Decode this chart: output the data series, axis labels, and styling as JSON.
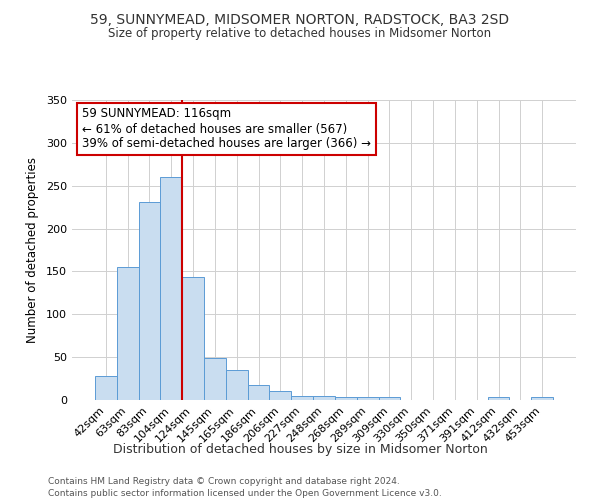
{
  "title": "59, SUNNYMEAD, MIDSOMER NORTON, RADSTOCK, BA3 2SD",
  "subtitle": "Size of property relative to detached houses in Midsomer Norton",
  "xlabel": "Distribution of detached houses by size in Midsomer Norton",
  "ylabel": "Number of detached properties",
  "bar_labels": [
    "42sqm",
    "63sqm",
    "83sqm",
    "104sqm",
    "124sqm",
    "145sqm",
    "165sqm",
    "186sqm",
    "206sqm",
    "227sqm",
    "248sqm",
    "268sqm",
    "289sqm",
    "309sqm",
    "330sqm",
    "350sqm",
    "371sqm",
    "391sqm",
    "412sqm",
    "432sqm",
    "453sqm"
  ],
  "bar_values": [
    28,
    155,
    231,
    260,
    143,
    49,
    35,
    18,
    11,
    5,
    5,
    4,
    3,
    3,
    0,
    0,
    0,
    0,
    4,
    0,
    4
  ],
  "bar_color": "#c9ddf0",
  "bar_edge_color": "#5b9bd5",
  "vline_color": "#cc0000",
  "vline_x_index": 4,
  "ylim": [
    0,
    350
  ],
  "yticks": [
    0,
    50,
    100,
    150,
    200,
    250,
    300,
    350
  ],
  "annotation_title": "59 SUNNYMEAD: 116sqm",
  "annotation_line1": "← 61% of detached houses are smaller (567)",
  "annotation_line2": "39% of semi-detached houses are larger (366) →",
  "annotation_box_color": "#ffffff",
  "annotation_box_edge_color": "#cc0000",
  "footer_line1": "Contains HM Land Registry data © Crown copyright and database right 2024.",
  "footer_line2": "Contains public sector information licensed under the Open Government Licence v3.0.",
  "background_color": "#ffffff",
  "grid_color": "#d0d0d0",
  "title_fontsize": 10,
  "subtitle_fontsize": 8.5,
  "ylabel_fontsize": 8.5,
  "xlabel_fontsize": 9,
  "tick_fontsize": 8,
  "annotation_fontsize": 8.5,
  "footer_fontsize": 6.5
}
